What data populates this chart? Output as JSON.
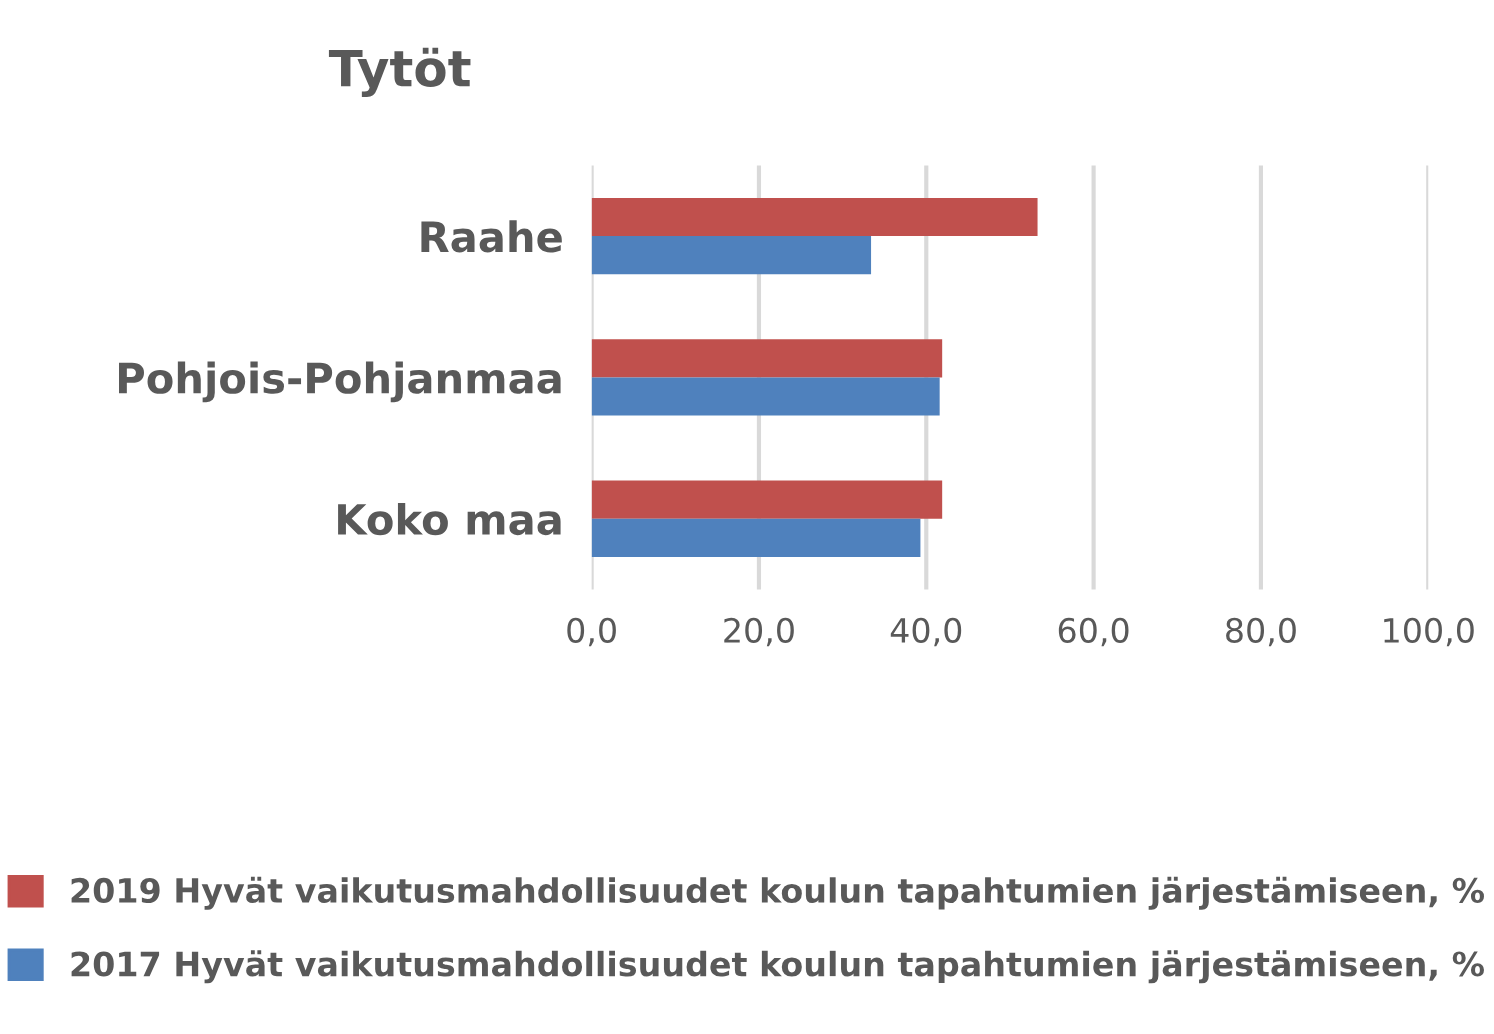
{
  "chart_data": {
    "type": "bar",
    "orientation": "horizontal",
    "title": "Tytöt",
    "categories": [
      "Raahe",
      "Pohjois-Pohjanmaa",
      "Koko maa"
    ],
    "series": [
      {
        "name": "2019 Hyvät vaikutusmahdollisuudet koulun tapahtumien järjestämiseen, %",
        "color": "#c0504d",
        "values": [
          53.3,
          41.9,
          41.9
        ]
      },
      {
        "name": "2017 Hyvät vaikutusmahdollisuudet koulun tapahtumien järjestämiseen, %",
        "color": "#4f81bd",
        "values": [
          33.4,
          41.6,
          39.3
        ]
      }
    ],
    "xlim": [
      0,
      100
    ],
    "xticks": [
      {
        "value": 0,
        "label": "0,0"
      },
      {
        "value": 20,
        "label": "20,0"
      },
      {
        "value": 40,
        "label": "40,0"
      },
      {
        "value": 60,
        "label": "60,0"
      },
      {
        "value": 80,
        "label": "80,0"
      },
      {
        "value": 100,
        "label": "100,0"
      }
    ],
    "grid": "x",
    "legend": "bottom"
  }
}
